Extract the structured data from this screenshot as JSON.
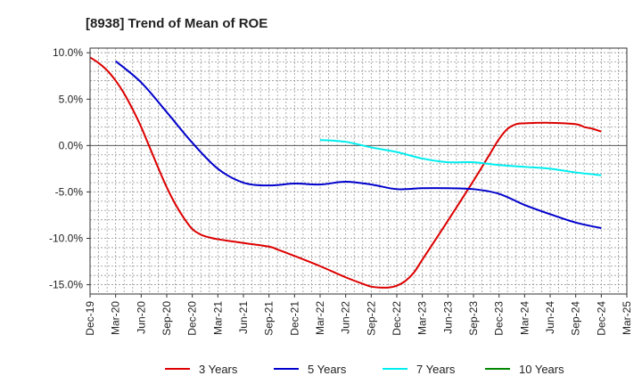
{
  "chart_data": {
    "type": "line",
    "title": "[8938]  Trend of Mean of ROE",
    "xlabel": "",
    "ylabel": "",
    "ylim": [
      -16,
      10.5
    ],
    "y_ticks": [
      10.0,
      5.0,
      0.0,
      -5.0,
      -10.0,
      -15.0
    ],
    "y_tick_labels": [
      "10.0%",
      "5.0%",
      "0.0%",
      "-5.0%",
      "-10.0%",
      "-15.0%"
    ],
    "x_ticks": [
      "Dec-19",
      "Mar-20",
      "Jun-20",
      "Sep-20",
      "Dec-20",
      "Mar-21",
      "Jun-21",
      "Sep-21",
      "Dec-21",
      "Mar-22",
      "Jun-22",
      "Sep-22",
      "Dec-22",
      "Mar-23",
      "Jun-23",
      "Sep-23",
      "Dec-23",
      "Mar-24",
      "Jun-24",
      "Sep-24",
      "Dec-24",
      "Mar-25"
    ],
    "grid": true,
    "legend_position": "bottom",
    "series": [
      {
        "name": "3 Years",
        "color": "#dd0000",
        "x": [
          "Dec-19",
          "Jan-20",
          "Feb-20",
          "Mar-20",
          "Apr-20",
          "May-20",
          "Jun-20",
          "Jul-20",
          "Aug-20",
          "Sep-20",
          "Oct-20",
          "Nov-20",
          "Dec-20",
          "Jan-21",
          "Feb-21",
          "Mar-21",
          "Jun-21",
          "Sep-21",
          "Oct-21",
          "Dec-21",
          "Mar-22",
          "Jun-22",
          "Aug-22",
          "Sep-22",
          "Oct-22",
          "Nov-22",
          "Dec-22",
          "Jan-23",
          "Feb-23",
          "Mar-23",
          "Jun-23",
          "Sep-23",
          "Nov-23",
          "Dec-23",
          "Jan-24",
          "Feb-24",
          "Mar-24",
          "Jun-24",
          "Sep-24",
          "Oct-24",
          "Nov-24",
          "Dec-24"
        ],
        "values": [
          9.5,
          8.9,
          8.1,
          7.0,
          5.6,
          3.9,
          2.0,
          -0.2,
          -2.4,
          -4.5,
          -6.3,
          -7.8,
          -9.0,
          -9.6,
          -9.9,
          -10.1,
          -10.5,
          -10.9,
          -11.2,
          -11.9,
          -13.0,
          -14.2,
          -14.9,
          -15.2,
          -15.3,
          -15.3,
          -15.1,
          -14.6,
          -13.7,
          -12.3,
          -8.1,
          -3.8,
          -0.8,
          0.7,
          1.8,
          2.3,
          2.4,
          2.45,
          2.3,
          2.0,
          1.8,
          1.5
        ]
      },
      {
        "name": "5 Years",
        "color": "#0000cc",
        "x": [
          "Mar-20",
          "Jun-20",
          "Sep-20",
          "Dec-20",
          "Mar-21",
          "Jun-21",
          "Sep-21",
          "Dec-21",
          "Mar-22",
          "Jun-22",
          "Sep-22",
          "Dec-22",
          "Mar-23",
          "Jun-23",
          "Sep-23",
          "Dec-23",
          "Mar-24",
          "Jun-24",
          "Sep-24",
          "Dec-24"
        ],
        "values": [
          9.1,
          6.8,
          3.6,
          0.3,
          -2.5,
          -4.0,
          -4.3,
          -4.1,
          -4.2,
          -3.9,
          -4.2,
          -4.7,
          -4.6,
          -4.6,
          -4.7,
          -5.2,
          -6.4,
          -7.4,
          -8.3,
          -8.9
        ]
      },
      {
        "name": "7 Years",
        "color": "#00eeee",
        "x": [
          "Mar-22",
          "Jun-22",
          "Sep-22",
          "Dec-22",
          "Mar-23",
          "Jun-23",
          "Sep-23",
          "Dec-23",
          "Mar-24",
          "Jun-24",
          "Sep-24",
          "Dec-24"
        ],
        "values": [
          0.6,
          0.4,
          -0.2,
          -0.7,
          -1.4,
          -1.8,
          -1.8,
          -2.1,
          -2.3,
          -2.5,
          -2.9,
          -3.2
        ]
      },
      {
        "name": "10 Years",
        "color": "#008800",
        "x": [],
        "values": []
      }
    ]
  }
}
